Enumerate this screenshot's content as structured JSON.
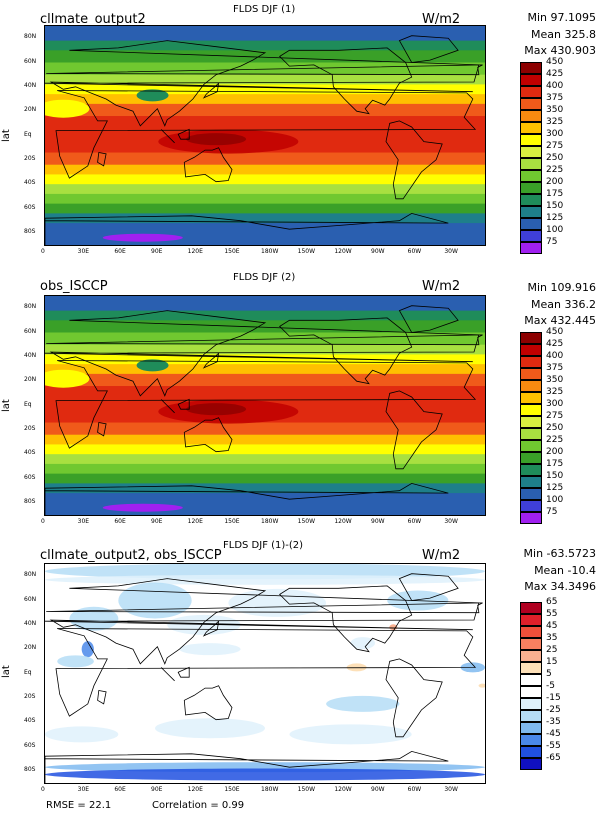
{
  "panels": [
    {
      "title": "FLDS DJF (1)",
      "case_name": "cllmate_output2",
      "units": "W/m2",
      "stats": {
        "min": "Min 97.1095",
        "mean": "Mean 325.8",
        "max": "Max 430.903"
      },
      "ylabel": "lat",
      "kind": "absolute",
      "colorbar_levels": [
        "450",
        "425",
        "400",
        "375",
        "350",
        "325",
        "300",
        "275",
        "250",
        "225",
        "200",
        "175",
        "150",
        "125",
        "100",
        "75"
      ],
      "colorbar_colors": [
        "#8c0000",
        "#c00000",
        "#e02a10",
        "#f05a1a",
        "#f88a10",
        "#ffc000",
        "#ffff00",
        "#d8f040",
        "#a8e040",
        "#70c830",
        "#3aa028",
        "#1f8c5a",
        "#1e7f8a",
        "#2a5fb0",
        "#3f3fd8",
        "#a020f0"
      ]
    },
    {
      "title": "FLDS DJF (2)",
      "case_name": "obs_ISCCP",
      "units": "W/m2",
      "stats": {
        "min": "Min 109.916",
        "mean": "Mean 336.2",
        "max": "Max 432.445"
      },
      "ylabel": "lat",
      "kind": "absolute",
      "colorbar_levels": [
        "450",
        "425",
        "400",
        "375",
        "350",
        "325",
        "300",
        "275",
        "250",
        "225",
        "200",
        "175",
        "150",
        "125",
        "100",
        "75"
      ],
      "colorbar_colors": [
        "#8c0000",
        "#c00000",
        "#e02a10",
        "#f05a1a",
        "#f88a10",
        "#ffc000",
        "#ffff00",
        "#d8f040",
        "#a8e040",
        "#70c830",
        "#3aa028",
        "#1f8c5a",
        "#1e7f8a",
        "#2a5fb0",
        "#3f3fd8",
        "#a020f0"
      ]
    },
    {
      "title": "FLDS DJF (1)-(2)",
      "case_name": "cllmate_output2, obs_ISCCP",
      "units": "W/m2",
      "stats": {
        "min": "Min -63.5723",
        "mean": "Mean -10.4",
        "max": "Max 34.3496"
      },
      "ylabel": "lat",
      "kind": "difference",
      "colorbar_levels": [
        "65",
        "55",
        "45",
        "35",
        "25",
        "15",
        "5",
        "-5",
        "-15",
        "-25",
        "-35",
        "-45",
        "-55",
        "-65"
      ],
      "colorbar_colors": [
        "#b00020",
        "#e0202a",
        "#f0503a",
        "#f88060",
        "#fab090",
        "#fde0b8",
        "#ffffff",
        "#ffffff",
        "#dff1fb",
        "#b5ddf6",
        "#7fbaf0",
        "#4a88ea",
        "#2050e0",
        "#1010c0"
      ]
    }
  ],
  "lat_ticks": [
    "80N",
    "60N",
    "40N",
    "20N",
    "Eq",
    "20S",
    "40S",
    "60S",
    "80S"
  ],
  "lon_ticks": [
    "0",
    "30E",
    "60E",
    "90E",
    "120E",
    "150E",
    "180W",
    "150W",
    "120W",
    "90W",
    "60W",
    "30W"
  ],
  "footer": {
    "rmse": "RMSE = 22.1",
    "correlation": "Correlation = 0.99"
  }
}
